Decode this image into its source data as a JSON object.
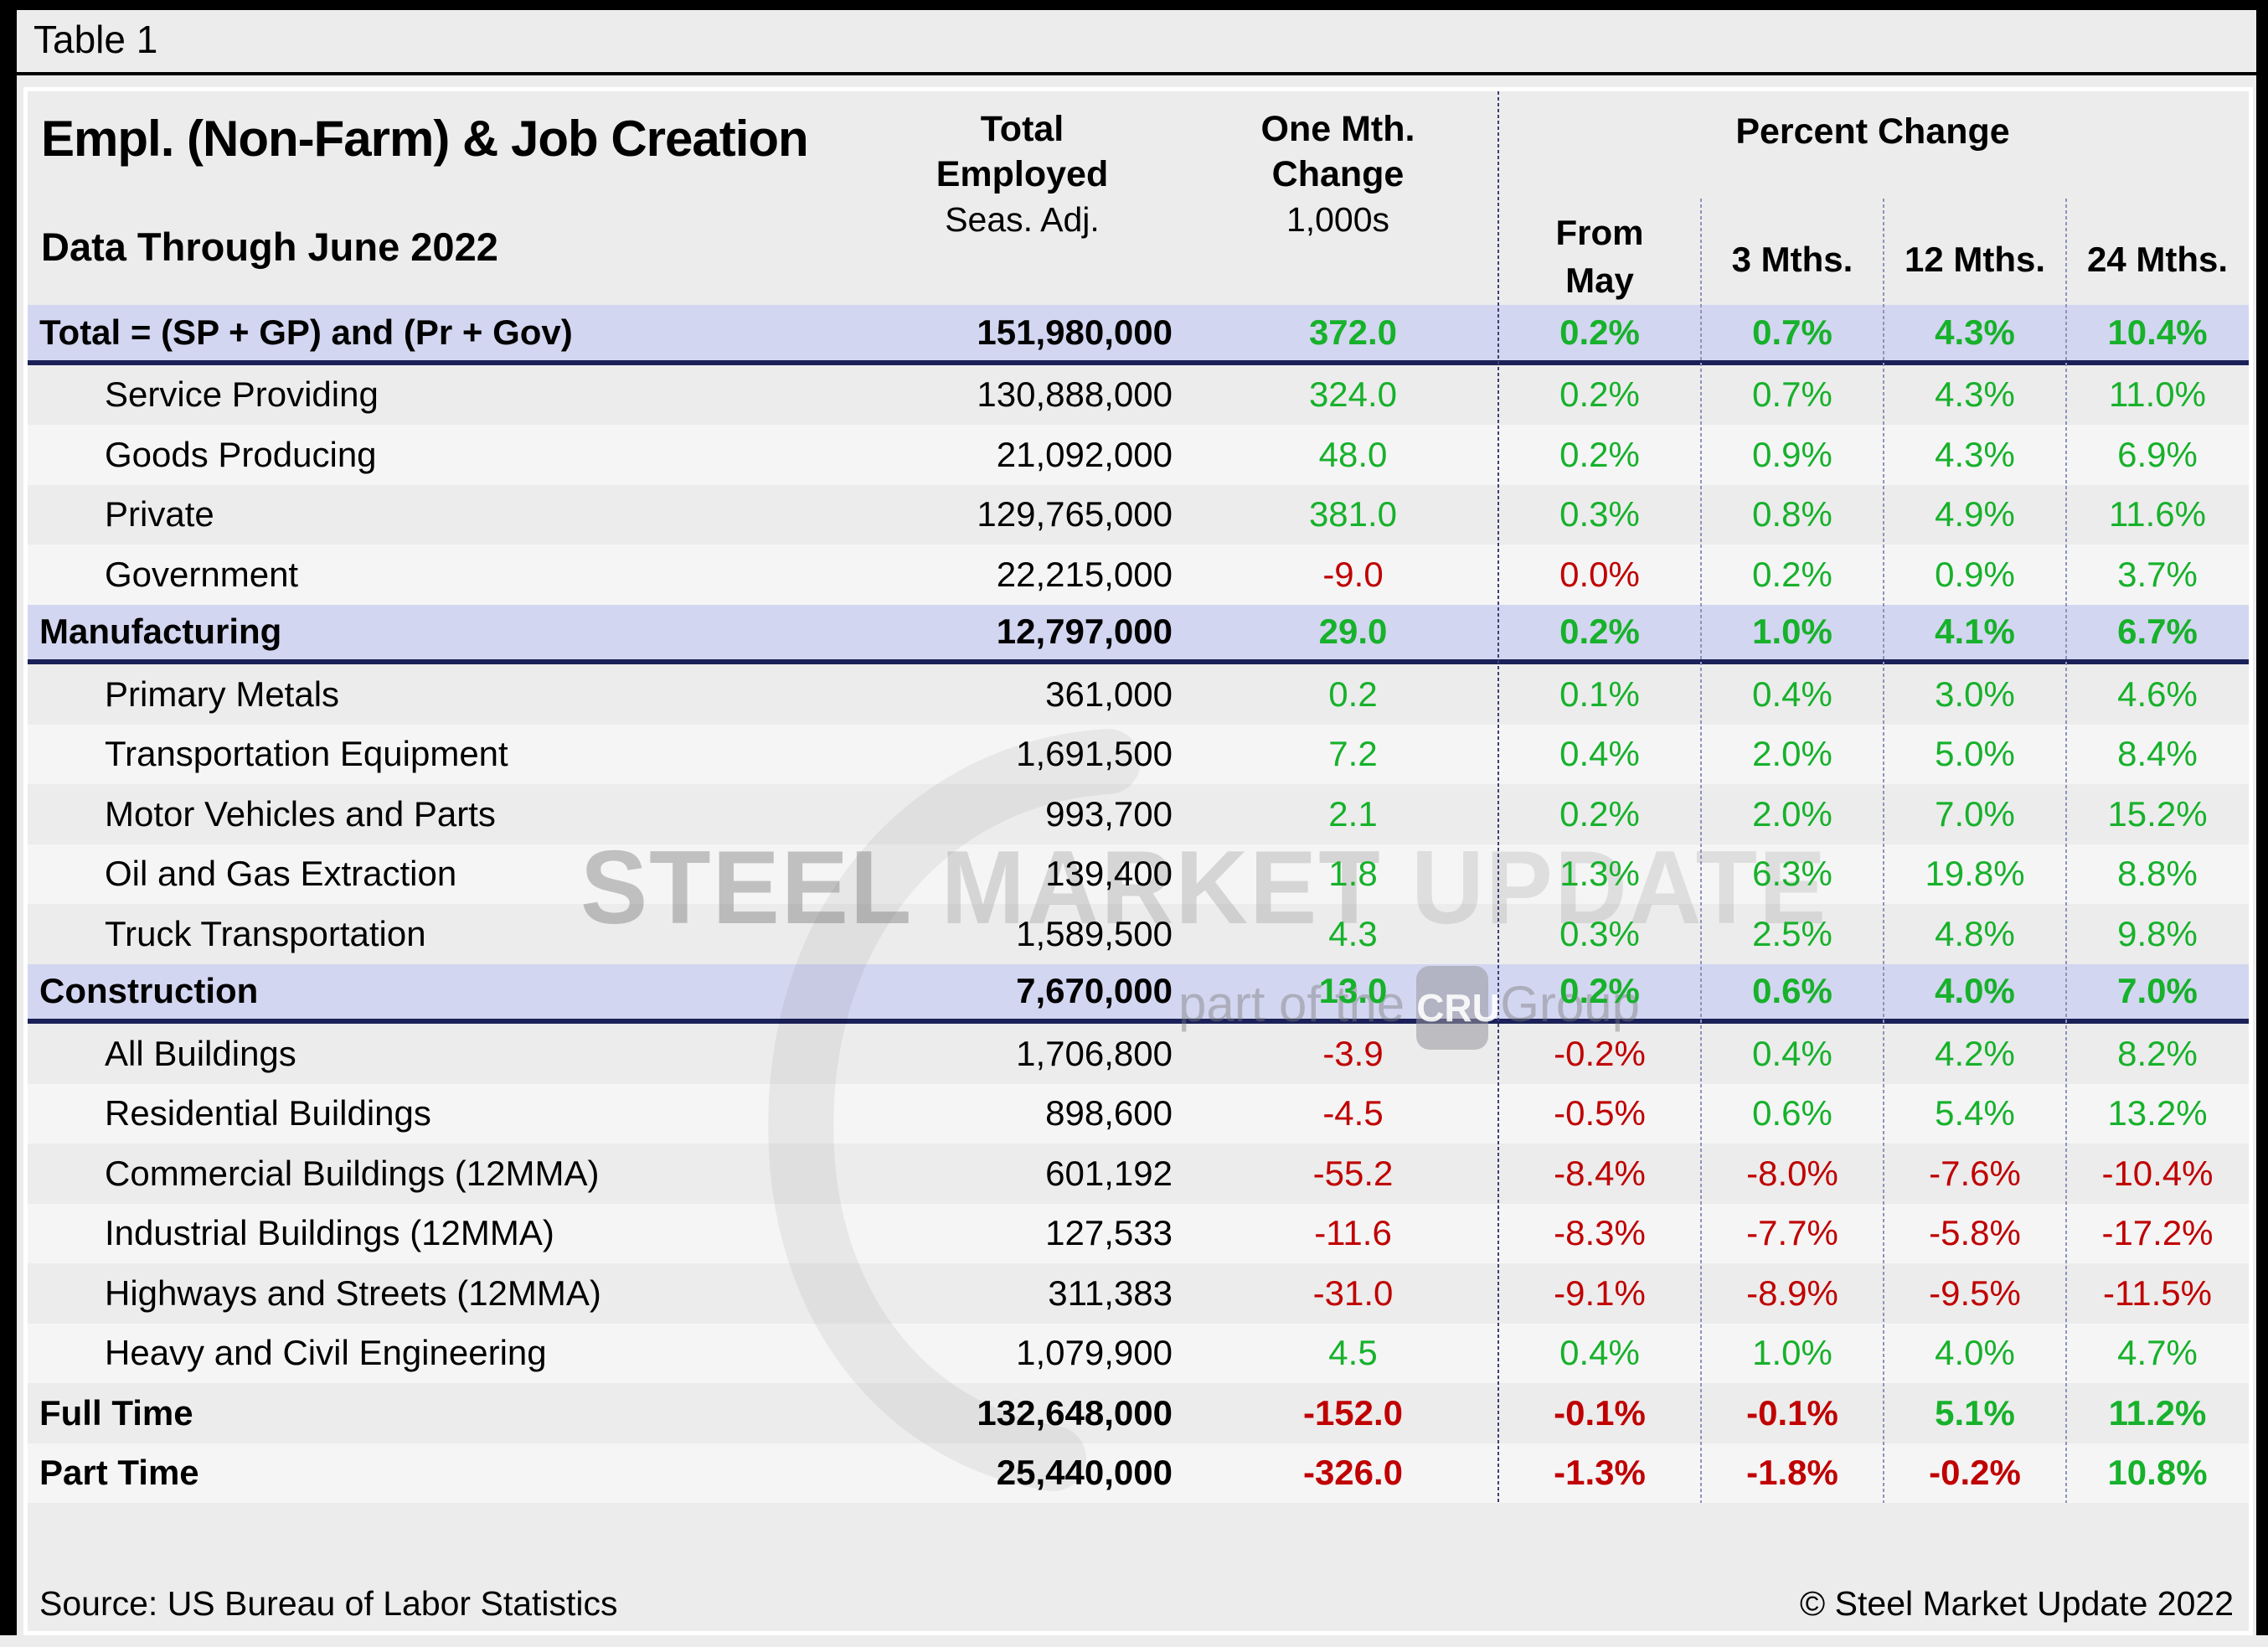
{
  "page": {
    "table_label": "Table 1",
    "source": "Source: US Bureau of Labor Statistics",
    "copyright": "© Steel Market Update 2022"
  },
  "header": {
    "title": "Empl. (Non-Farm) & Job Creation",
    "subtitle": "Data Through June 2022",
    "col_total_employed": {
      "line1": "Total",
      "line2": "Employed",
      "line3": "Seas. Adj."
    },
    "col_one_month": {
      "line1": "One Mth.",
      "line2": "Change",
      "line3": "1,000s"
    },
    "percent_change": "Percent Change",
    "subcols": [
      {
        "label": "From May",
        "lines": [
          "From",
          "May"
        ]
      },
      {
        "label": "3 Mths.",
        "lines": [
          "3 Mths."
        ]
      },
      {
        "label": "12 Mths.",
        "lines": [
          "12 Mths."
        ]
      },
      {
        "label": "24 Mths.",
        "lines": [
          "24 Mths."
        ]
      }
    ]
  },
  "watermark": {
    "word1": "STEEL",
    "word2": "MARKET",
    "word3": "UPDATE",
    "line2_prefix": "part of the",
    "badge": "CRU",
    "line2_suffix": "Group"
  },
  "colors": {
    "positive_green": "#17b12b",
    "negative_red": "#c00000",
    "section_highlight": "#d3d6f0",
    "section_underline": "#1b2158",
    "row_dark": "#ececec",
    "row_light": "#f5f5f6"
  },
  "rows": [
    {
      "label": "Total = (SP + GP) and (Pr + Gov)",
      "employed": "151,980,000",
      "change": "372.0",
      "change_c": "g",
      "pcts": [
        "0.2%",
        "0.7%",
        "4.3%",
        "10.4%"
      ],
      "pcts_c": [
        "g",
        "g",
        "g",
        "g"
      ],
      "style": "hl",
      "bold": true,
      "indent": false
    },
    {
      "label": "Service Providing",
      "employed": "130,888,000",
      "change": "324.0",
      "change_c": "g",
      "pcts": [
        "0.2%",
        "0.7%",
        "4.3%",
        "11.0%"
      ],
      "pcts_c": [
        "g",
        "g",
        "g",
        "g"
      ],
      "style": "dark",
      "bold": false,
      "indent": true
    },
    {
      "label": "Goods Producing",
      "employed": "21,092,000",
      "change": "48.0",
      "change_c": "g",
      "pcts": [
        "0.2%",
        "0.9%",
        "4.3%",
        "6.9%"
      ],
      "pcts_c": [
        "g",
        "g",
        "g",
        "g"
      ],
      "style": "light",
      "bold": false,
      "indent": true
    },
    {
      "label": "Private",
      "employed": "129,765,000",
      "change": "381.0",
      "change_c": "g",
      "pcts": [
        "0.3%",
        "0.8%",
        "4.9%",
        "11.6%"
      ],
      "pcts_c": [
        "g",
        "g",
        "g",
        "g"
      ],
      "style": "dark",
      "bold": false,
      "indent": true
    },
    {
      "label": "Government",
      "employed": "22,215,000",
      "change": "-9.0",
      "change_c": "r",
      "pcts": [
        "0.0%",
        "0.2%",
        "0.9%",
        "3.7%"
      ],
      "pcts_c": [
        "r",
        "g",
        "g",
        "g"
      ],
      "style": "light",
      "bold": false,
      "indent": true
    },
    {
      "label": "Manufacturing",
      "employed": "12,797,000",
      "change": "29.0",
      "change_c": "g",
      "pcts": [
        "0.2%",
        "1.0%",
        "4.1%",
        "6.7%"
      ],
      "pcts_c": [
        "g",
        "g",
        "g",
        "g"
      ],
      "style": "hl",
      "bold": true,
      "indent": false
    },
    {
      "label": "Primary Metals",
      "employed": "361,000",
      "change": "0.2",
      "change_c": "g",
      "pcts": [
        "0.1%",
        "0.4%",
        "3.0%",
        "4.6%"
      ],
      "pcts_c": [
        "g",
        "g",
        "g",
        "g"
      ],
      "style": "dark",
      "bold": false,
      "indent": true
    },
    {
      "label": "Transportation Equipment",
      "employed": "1,691,500",
      "change": "7.2",
      "change_c": "g",
      "pcts": [
        "0.4%",
        "2.0%",
        "5.0%",
        "8.4%"
      ],
      "pcts_c": [
        "g",
        "g",
        "g",
        "g"
      ],
      "style": "light",
      "bold": false,
      "indent": true
    },
    {
      "label": "Motor Vehicles and Parts",
      "employed": "993,700",
      "change": "2.1",
      "change_c": "g",
      "pcts": [
        "0.2%",
        "2.0%",
        "7.0%",
        "15.2%"
      ],
      "pcts_c": [
        "g",
        "g",
        "g",
        "g"
      ],
      "style": "dark",
      "bold": false,
      "indent": true
    },
    {
      "label": "Oil and Gas Extraction",
      "employed": "139,400",
      "change": "1.8",
      "change_c": "g",
      "pcts": [
        "1.3%",
        "6.3%",
        "19.8%",
        "8.8%"
      ],
      "pcts_c": [
        "g",
        "g",
        "g",
        "g"
      ],
      "style": "light",
      "bold": false,
      "indent": true
    },
    {
      "label": "Truck Transportation",
      "employed": "1,589,500",
      "change": "4.3",
      "change_c": "g",
      "pcts": [
        "0.3%",
        "2.5%",
        "4.8%",
        "9.8%"
      ],
      "pcts_c": [
        "g",
        "g",
        "g",
        "g"
      ],
      "style": "dark",
      "bold": false,
      "indent": true
    },
    {
      "label": "Construction",
      "employed": "7,670,000",
      "change": "13.0",
      "change_c": "g",
      "pcts": [
        "0.2%",
        "0.6%",
        "4.0%",
        "7.0%"
      ],
      "pcts_c": [
        "g",
        "g",
        "g",
        "g"
      ],
      "style": "hl",
      "bold": true,
      "indent": false
    },
    {
      "label": "All Buildings",
      "employed": "1,706,800",
      "change": "-3.9",
      "change_c": "r",
      "pcts": [
        "-0.2%",
        "0.4%",
        "4.2%",
        "8.2%"
      ],
      "pcts_c": [
        "r",
        "g",
        "g",
        "g"
      ],
      "style": "dark",
      "bold": false,
      "indent": true
    },
    {
      "label": "Residential Buildings",
      "employed": "898,600",
      "change": "-4.5",
      "change_c": "r",
      "pcts": [
        "-0.5%",
        "0.6%",
        "5.4%",
        "13.2%"
      ],
      "pcts_c": [
        "r",
        "g",
        "g",
        "g"
      ],
      "style": "light",
      "bold": false,
      "indent": true
    },
    {
      "label": "Commercial Buildings (12MMA)",
      "employed": "601,192",
      "change": "-55.2",
      "change_c": "r",
      "pcts": [
        "-8.4%",
        "-8.0%",
        "-7.6%",
        "-10.4%"
      ],
      "pcts_c": [
        "r",
        "r",
        "r",
        "r"
      ],
      "style": "dark",
      "bold": false,
      "indent": true
    },
    {
      "label": "Industrial Buildings (12MMA)",
      "employed": "127,533",
      "change": "-11.6",
      "change_c": "r",
      "pcts": [
        "-8.3%",
        "-7.7%",
        "-5.8%",
        "-17.2%"
      ],
      "pcts_c": [
        "r",
        "r",
        "r",
        "r"
      ],
      "style": "light",
      "bold": false,
      "indent": true
    },
    {
      "label": "Highways and Streets (12MMA)",
      "employed": "311,383",
      "change": "-31.0",
      "change_c": "r",
      "pcts": [
        "-9.1%",
        "-8.9%",
        "-9.5%",
        "-11.5%"
      ],
      "pcts_c": [
        "r",
        "r",
        "r",
        "r"
      ],
      "style": "dark",
      "bold": false,
      "indent": true
    },
    {
      "label": "Heavy and Civil Engineering",
      "employed": "1,079,900",
      "change": "4.5",
      "change_c": "g",
      "pcts": [
        "0.4%",
        "1.0%",
        "4.0%",
        "4.7%"
      ],
      "pcts_c": [
        "g",
        "g",
        "g",
        "g"
      ],
      "style": "light",
      "bold": false,
      "indent": true
    },
    {
      "label": "Full Time",
      "employed": "132,648,000",
      "change": "-152.0",
      "change_c": "r",
      "pcts": [
        "-0.1%",
        "-0.1%",
        "5.1%",
        "11.2%"
      ],
      "pcts_c": [
        "r",
        "r",
        "g",
        "g"
      ],
      "style": "dark",
      "bold": true,
      "indent": false
    },
    {
      "label": "Part Time",
      "employed": "25,440,000",
      "change": "-326.0",
      "change_c": "r",
      "pcts": [
        "-1.3%",
        "-1.8%",
        "-0.2%",
        "10.8%"
      ],
      "pcts_c": [
        "r",
        "r",
        "r",
        "g"
      ],
      "style": "light",
      "bold": true,
      "indent": false
    }
  ]
}
